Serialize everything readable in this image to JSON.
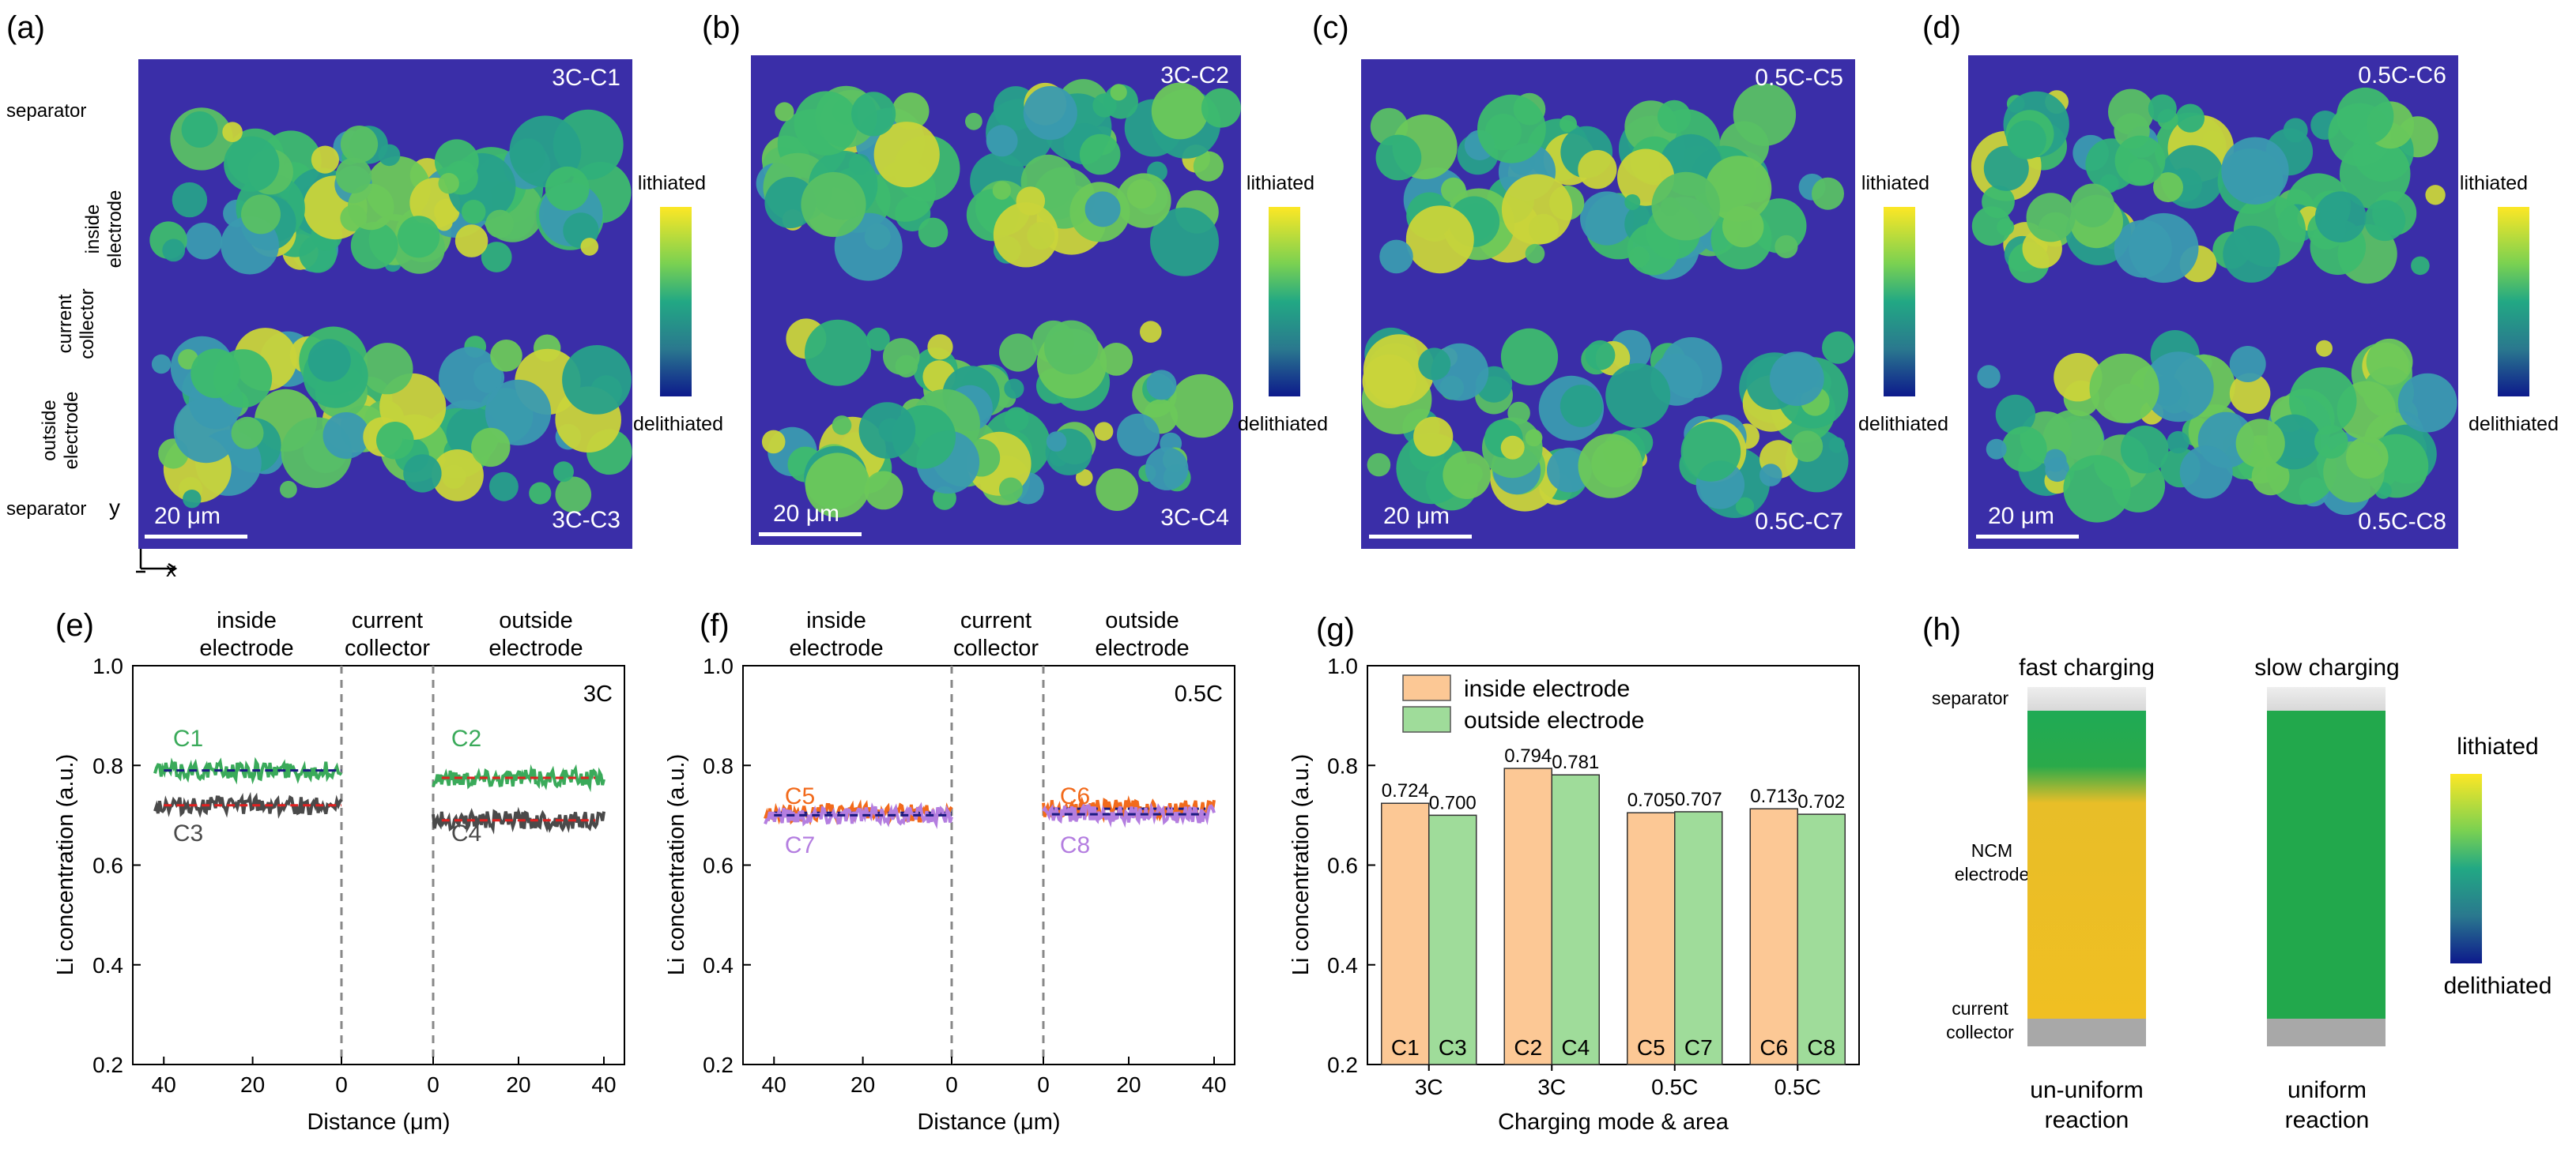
{
  "colors": {
    "map_bg": "#3a2ea8",
    "inside_fill": "#fcc895",
    "outside_fill": "#9fdc9a",
    "green_series": "#3aaa5a",
    "dark_series": "#4a4a4a",
    "orange_series": "#f26a1b",
    "purple_series": "#b47ee0",
    "red_dash": "#e02020",
    "blue_dash": "#1a1a80",
    "gray_divider": "#888888",
    "bar_fill_yellow": "#f0c020",
    "bar_fill_green": "#22a84c"
  },
  "top_panels": [
    {
      "label": "(a)",
      "top_tag": "3C-C1",
      "bottom_tag": "3C-C3",
      "scalebar": "20 μm",
      "cbar_top": "lithiated",
      "cbar_bottom": "delithiated"
    },
    {
      "label": "(b)",
      "top_tag": "3C-C2",
      "bottom_tag": "3C-C4",
      "scalebar": "20 μm",
      "cbar_top": "lithiated",
      "cbar_bottom": "delithiated"
    },
    {
      "label": "(c)",
      "top_tag": "0.5C-C5",
      "bottom_tag": "0.5C-C7",
      "scalebar": "20 μm",
      "cbar_top": "lithiated",
      "cbar_bottom": "delithiated"
    },
    {
      "label": "(d)",
      "top_tag": "0.5C-C6",
      "bottom_tag": "0.5C-C8",
      "scalebar": "20 μm",
      "cbar_top": "lithiated",
      "cbar_bottom": "delithiated"
    }
  ],
  "side_labels": {
    "separator_top": "separator",
    "inside": [
      "inside",
      "electrode"
    ],
    "current": [
      "current",
      "collector"
    ],
    "outside": [
      "outside",
      "electrode"
    ],
    "separator_bottom": "separator",
    "axis_y": "y",
    "axis_x": "x"
  },
  "profile_header": {
    "inside": [
      "inside",
      "electrode"
    ],
    "current": [
      "current",
      "collector"
    ],
    "outside": [
      "outside",
      "electrode"
    ]
  },
  "panel_e": {
    "label": "(e)",
    "rate": "3C",
    "ylabel": "Li concentration (a.u.)",
    "xlabel": "Distance (μm)",
    "ylim": [
      0.2,
      1.0
    ],
    "yticks": [
      "0.2",
      "0.4",
      "0.6",
      "0.8",
      "1.0"
    ],
    "left_xticks": [
      "40",
      "20",
      "0"
    ],
    "right_xticks": [
      "0",
      "20",
      "40"
    ],
    "series_labels": {
      "upper_left": "C1",
      "lower_left": "C3",
      "upper_right": "C2",
      "lower_right": "C4"
    }
  },
  "panel_f": {
    "label": "(f)",
    "rate": "0.5C",
    "ylabel": "Li concentration (a.u.)",
    "xlabel": "Distance (μm)",
    "ylim": [
      0.2,
      1.0
    ],
    "yticks": [
      "0.2",
      "0.4",
      "0.6",
      "0.8",
      "1.0"
    ],
    "left_xticks": [
      "40",
      "20",
      "0"
    ],
    "right_xticks": [
      "0",
      "20",
      "40"
    ],
    "series_labels": {
      "upper_left": "C5",
      "lower_left": "C7",
      "upper_right": "C6",
      "lower_right": "C8"
    }
  },
  "chart_data": [
    {
      "type": "line",
      "title": "(e) 3C",
      "xlabel": "Distance (μm)",
      "ylabel": "Li concentration (a.u.)",
      "ylim": [
        0.2,
        1.0
      ],
      "xlim_left": [
        42,
        0
      ],
      "xlim_right": [
        0,
        40
      ],
      "series": [
        {
          "name": "C1",
          "side": "inside electrode",
          "x": [
            42,
            0
          ],
          "mean": 0.79,
          "color": "green"
        },
        {
          "name": "C3",
          "side": "inside electrode",
          "x": [
            42,
            0
          ],
          "mean": 0.72,
          "color": "dark gray"
        },
        {
          "name": "C2",
          "side": "outside electrode",
          "x": [
            0,
            40
          ],
          "mean": 0.775,
          "color": "green"
        },
        {
          "name": "C4",
          "side": "outside electrode",
          "x": [
            0,
            40
          ],
          "mean": 0.69,
          "color": "dark gray"
        }
      ]
    },
    {
      "type": "line",
      "title": "(f) 0.5C",
      "xlabel": "Distance (μm)",
      "ylabel": "Li concentration (a.u.)",
      "ylim": [
        0.2,
        1.0
      ],
      "xlim_left": [
        42,
        0
      ],
      "xlim_right": [
        0,
        40
      ],
      "series": [
        {
          "name": "C5",
          "side": "inside electrode",
          "x": [
            42,
            0
          ],
          "mean": 0.705,
          "color": "orange"
        },
        {
          "name": "C7",
          "side": "inside electrode",
          "x": [
            42,
            0
          ],
          "mean": 0.7,
          "color": "purple"
        },
        {
          "name": "C6",
          "side": "outside electrode",
          "x": [
            0,
            40
          ],
          "mean": 0.713,
          "color": "orange"
        },
        {
          "name": "C8",
          "side": "outside electrode",
          "x": [
            0,
            40
          ],
          "mean": 0.702,
          "color": "purple"
        }
      ]
    },
    {
      "type": "bar",
      "title": "(g)",
      "xlabel": "Charging mode & area",
      "ylabel": "Li concentration (a.u.)",
      "ylim": [
        0.2,
        1.0
      ],
      "yticks": [
        "0.2",
        "0.4",
        "0.6",
        "0.8",
        "1.0"
      ],
      "categories": [
        "3C",
        "3C",
        "0.5C",
        "0.5C"
      ],
      "legend": [
        "inside electrode",
        "outside electrode"
      ],
      "series": [
        {
          "name": "inside electrode",
          "values": [
            0.724,
            0.794,
            0.705,
            0.713
          ],
          "value_labels": [
            "0.724",
            "0.794",
            "0.705",
            "0.713"
          ],
          "bar_labels": [
            "C1",
            "C2",
            "C5",
            "C6"
          ]
        },
        {
          "name": "outside electrode",
          "values": [
            0.7,
            0.781,
            0.707,
            0.702
          ],
          "value_labels": [
            "0.700",
            "0.781",
            "0.707",
            "0.702"
          ],
          "bar_labels": [
            "C3",
            "C4",
            "C7",
            "C8"
          ]
        }
      ]
    }
  ],
  "panel_g": {
    "label": "(g)",
    "legend_inside": "inside electrode",
    "legend_outside": "outside electrode"
  },
  "panel_h": {
    "label": "(h)",
    "fast_title": "fast charging",
    "slow_title": "slow charging",
    "separator": "separator",
    "ncm": [
      "NCM",
      "electrode"
    ],
    "collector": [
      "current",
      "collector"
    ],
    "fast_caption": [
      "un-uniform",
      "reaction"
    ],
    "slow_caption": [
      "uniform",
      "reaction"
    ],
    "cbar_top": "lithiated",
    "cbar_bottom": "delithiated"
  }
}
